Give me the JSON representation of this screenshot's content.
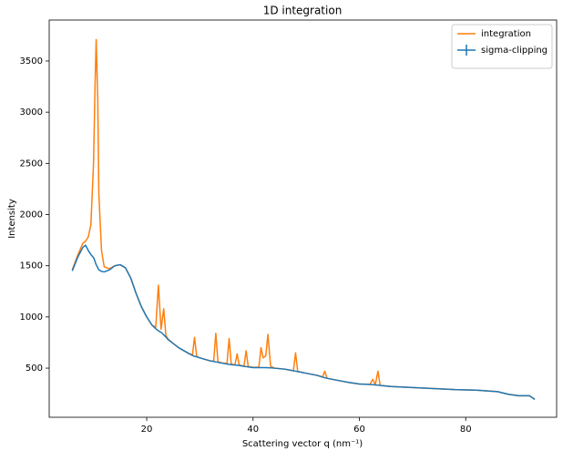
{
  "chart_data": {
    "type": "line",
    "title": "1D integration",
    "xlabel": "Scattering vector q (nm⁻¹)",
    "ylabel": "Intensity",
    "x": [
      6,
      7,
      8,
      8.5,
      9,
      9.5,
      10,
      10.3,
      10.5,
      10.8,
      11,
      11.5,
      12,
      13,
      14,
      15,
      16,
      17,
      18,
      19,
      20,
      21,
      21.7,
      22.2,
      22.7,
      23.2,
      23.6,
      24,
      25,
      26,
      27,
      28,
      28.6,
      29,
      29.4,
      30,
      32,
      32.6,
      33,
      33.4,
      34,
      35.1,
      35.5,
      35.9,
      36.6,
      37,
      37.4,
      38.3,
      38.7,
      39.1,
      40,
      41.1,
      41.5,
      41.9,
      42.4,
      42.8,
      43.3,
      44,
      46,
      47.6,
      48,
      48.4,
      50,
      52,
      53.1,
      53.5,
      53.9,
      54,
      56,
      58,
      60,
      62,
      62.5,
      63,
      63.5,
      63.9,
      64,
      66,
      70,
      74,
      78,
      82,
      86,
      88,
      90,
      92,
      93
    ],
    "series": [
      {
        "name": "integration",
        "color": "#ff7f0e",
        "values": [
          1460,
          1600,
          1720,
          1740,
          1780,
          1900,
          2500,
          3300,
          3710,
          3100,
          2200,
          1650,
          1490,
          1470,
          1500,
          1510,
          1480,
          1380,
          1230,
          1100,
          1000,
          920,
          900,
          1310,
          880,
          1080,
          820,
          785,
          740,
          700,
          670,
          640,
          630,
          800,
          615,
          600,
          570,
          570,
          840,
          565,
          552,
          545,
          790,
          540,
          532,
          640,
          530,
          520,
          670,
          515,
          507,
          510,
          700,
          600,
          620,
          830,
          520,
          500,
          490,
          475,
          650,
          468,
          450,
          430,
          415,
          470,
          404,
          400,
          380,
          360,
          345,
          342,
          390,
          340,
          470,
          335,
          330,
          320,
          310,
          300,
          290,
          285,
          270,
          245,
          230,
          230,
          195
        ]
      },
      {
        "name": "sigma-clipping",
        "color": "#1f77b4",
        "values": [
          1450,
          1580,
          1680,
          1700,
          1650,
          1610,
          1580,
          1540,
          1510,
          1480,
          1460,
          1445,
          1440,
          1460,
          1500,
          1510,
          1480,
          1380,
          1230,
          1100,
          1000,
          920,
          885,
          865,
          850,
          825,
          805,
          780,
          740,
          700,
          670,
          640,
          625,
          615,
          610,
          600,
          570,
          565,
          560,
          557,
          550,
          540,
          537,
          534,
          530,
          528,
          526,
          517,
          515,
          512,
          505,
          505,
          505,
          505,
          505,
          504,
          503,
          500,
          490,
          474,
          470,
          466,
          450,
          430,
          412,
          406,
          402,
          400,
          380,
          360,
          345,
          340,
          338,
          336,
          334,
          332,
          330,
          320,
          310,
          300,
          290,
          285,
          270,
          245,
          230,
          230,
          195
        ]
      }
    ],
    "xlim": [
      1.66,
      97.1
    ],
    "xticks": [
      20,
      40,
      60,
      80
    ],
    "ylim": [
      20,
      3900
    ],
    "yticks": [
      500,
      1000,
      1500,
      2000,
      2500,
      3000,
      3500
    ],
    "legend": "upper-right"
  }
}
